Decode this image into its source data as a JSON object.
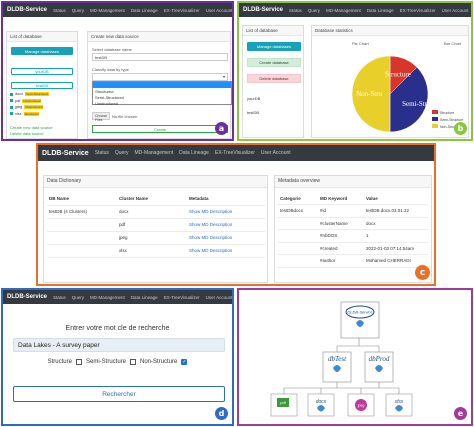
{
  "nav": {
    "brand": "DLDB-Service",
    "items": [
      "Status",
      "Query",
      "MD-Management",
      "Data Lineage",
      "EX-TreeVisualizer",
      "User Account"
    ]
  },
  "panel_a": {
    "badge": "a",
    "list_title": "List of database",
    "manage_btn": "Manage databases",
    "db1": "yourDB",
    "db2": "testDB",
    "tree": [
      {
        "name": "docx",
        "tag": "Semi-Structured"
      },
      {
        "name": "pdf",
        "tag": "Unstructured"
      },
      {
        "name": "jpeg",
        "tag": "Unstructured"
      },
      {
        "name": "xlsx",
        "tag": "Structured"
      }
    ],
    "links": [
      "Create new data source",
      "Delete data source"
    ],
    "create_title": "Create new data source",
    "select_label": "Select database name",
    "select_value": "testDB",
    "classify_label": "Classify data by type",
    "options": [
      "Structured",
      "Semi-Structured",
      "Unstructured"
    ],
    "choose_file": "Choose Files",
    "no_file": "No file chosen",
    "create_btn": "Create"
  },
  "panel_b": {
    "badge": "b",
    "list_title": "List of database",
    "buttons": [
      "Manage databases",
      "Create database",
      "Delete database"
    ],
    "dbs": [
      "yourDB",
      "testDB"
    ],
    "stats_title": "Database statistics",
    "pie_tab": "Pie Chart",
    "bar_tab": "Bar Chart",
    "pie_legend": [
      "Structure",
      "Semi-Structure",
      "Non-Structure"
    ]
  },
  "chart_data": {
    "type": "pie",
    "categories": [
      "Structure",
      "Semi-Structure",
      "Non-Structure"
    ],
    "values": [
      12.5,
      37.5,
      50
    ],
    "colors": [
      "#d9362b",
      "#2b2f8c",
      "#e8cf2a"
    ]
  },
  "panel_c": {
    "badge": "c",
    "dict_title": "Data Dictionary",
    "headers": [
      "DB Name",
      "Cluster Name",
      "Metadata"
    ],
    "db_name": "testDB (4 Clusters)",
    "clusters": [
      "docx",
      "pdf",
      "jpeg",
      "xlsx"
    ],
    "show_link": "Show MD Description",
    "meta_title": "Metadata overview",
    "meta_headers": [
      "Categorie",
      "MD Keyword",
      "Value"
    ],
    "meta_rows": [
      {
        "cat": "testDBdocx",
        "kw": "#id",
        "val": "testDB.docx.03.01.22"
      },
      {
        "cat": "",
        "kw": "#clusterName",
        "val": "docx"
      },
      {
        "cat": "",
        "kw": "#nbDOS",
        "val": "1"
      },
      {
        "cat": "",
        "kw": "#created",
        "val": "2022-01-03 07:14:54am"
      },
      {
        "cat": "",
        "kw": "#author",
        "val": "Mohamed CHERRADI"
      }
    ]
  },
  "panel_d": {
    "badge": "d",
    "prompt": "Entrer votre mot cle de recherche",
    "query": "Data Lakes - A survey paper",
    "checks": [
      {
        "label": "Structure",
        "checked": false
      },
      {
        "label": "Semi-Structure",
        "checked": false
      },
      {
        "label": "Non-Structure",
        "checked": true
      }
    ],
    "search_btn": "Rechercher"
  },
  "panel_e": {
    "badge": "e",
    "root": "DLDB-Service",
    "children": [
      "dbTest",
      "dbProd"
    ],
    "leaves": [
      "pdf",
      "docx",
      "jpeg",
      "xlsx"
    ]
  }
}
